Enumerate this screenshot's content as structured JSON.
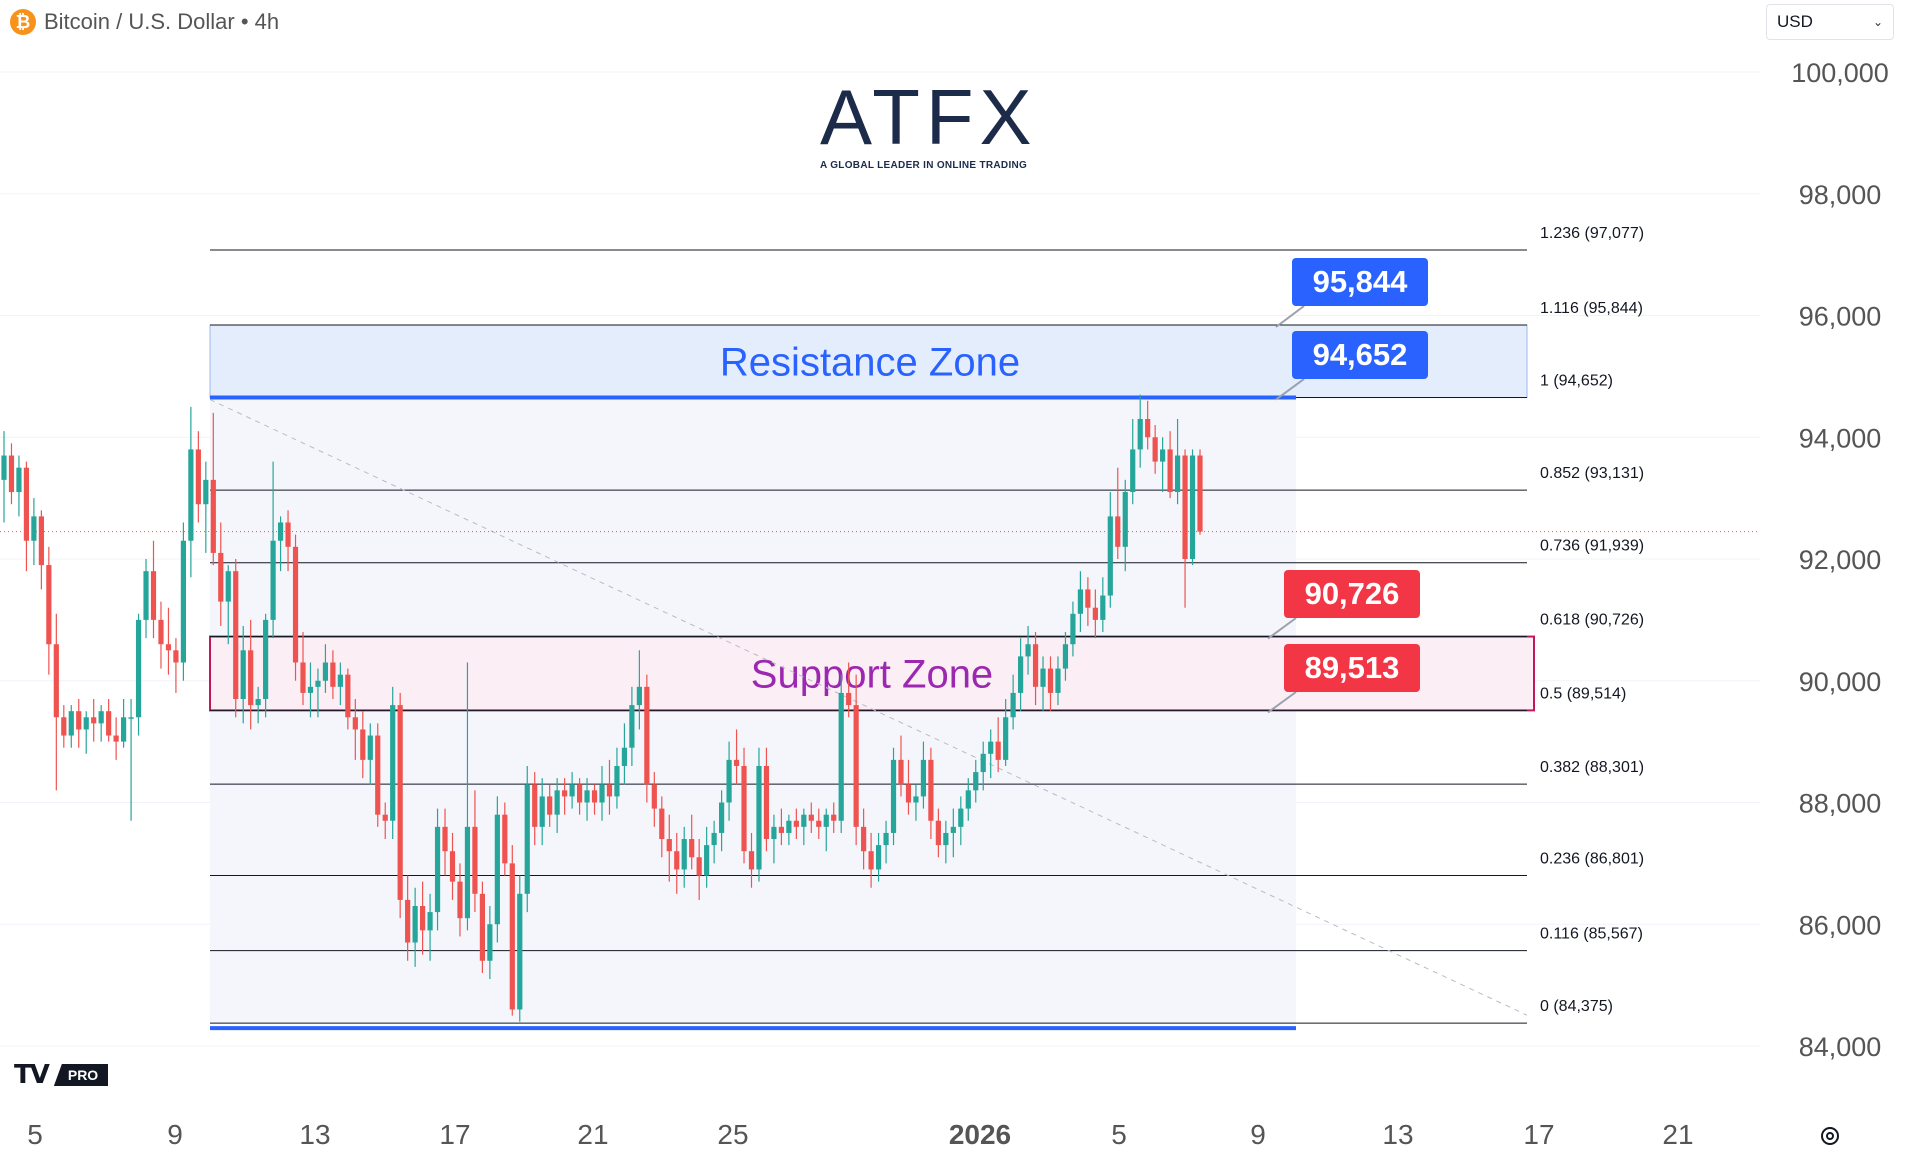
{
  "header": {
    "symbol_icon": "bitcoin-icon",
    "symbol_title": "Bitcoin / U.S. Dollar • 4h",
    "currency": "USD"
  },
  "branding": {
    "logo_text": "ATFX",
    "logo_tagline": "A GLOBAL LEADER IN ONLINE TRADING",
    "platform_logo": "tradingview-logo",
    "platform_badge": "PRO"
  },
  "colors": {
    "up": "#26a69a",
    "down": "#ef5350",
    "resistance": "#2962ff",
    "support": "#c2185b",
    "resistance_label": "#2962ff",
    "support_label": "#f23645"
  },
  "chart_data": {
    "type": "candlestick",
    "timeframe": "4h",
    "ylim": [
      83500,
      100500
    ],
    "y_ticks": [
      {
        "value": 84000,
        "label": "84,000"
      },
      {
        "value": 86000,
        "label": "86,000"
      },
      {
        "value": 88000,
        "label": "88,000"
      },
      {
        "value": 90000,
        "label": "90,000"
      },
      {
        "value": 92000,
        "label": "92,000"
      },
      {
        "value": 94000,
        "label": "94,000"
      },
      {
        "value": 96000,
        "label": "96,000"
      },
      {
        "value": 98000,
        "label": "98,000"
      },
      {
        "value": 100000,
        "label": "100,000"
      }
    ],
    "x_ticks": [
      "5",
      "9",
      "13",
      "17",
      "21",
      "25",
      "2026",
      "5",
      "9",
      "13",
      "17",
      "21"
    ],
    "fibonacci": {
      "levels": [
        {
          "ratio": "1.236",
          "price": 97077,
          "label": "1.236 (97,077)"
        },
        {
          "ratio": "1.116",
          "price": 95844,
          "label": "1.116 (95,844)"
        },
        {
          "ratio": "1",
          "price": 94652,
          "label": "1 (94,652)"
        },
        {
          "ratio": "0.852",
          "price": 93131,
          "label": "0.852 (93,131)"
        },
        {
          "ratio": "0.736",
          "price": 91939,
          "label": "0.736 (91,939)"
        },
        {
          "ratio": "0.618",
          "price": 90726,
          "label": "0.618 (90,726)"
        },
        {
          "ratio": "0.5",
          "price": 89514,
          "label": "0.5 (89,514)"
        },
        {
          "ratio": "0.382",
          "price": 88301,
          "label": "0.382 (88,301)"
        },
        {
          "ratio": "0.236",
          "price": 86801,
          "label": "0.236 (86,801)"
        },
        {
          "ratio": "0.116",
          "price": 85567,
          "label": "0.116 (85,567)"
        },
        {
          "ratio": "0",
          "price": 84375,
          "label": "0 (84,375)"
        }
      ]
    },
    "zones": [
      {
        "name": "Resistance Zone",
        "low": 94652,
        "high": 95844
      },
      {
        "name": "Support Zone",
        "low": 89513,
        "high": 90726
      }
    ],
    "price_labels": [
      {
        "value": 95844,
        "label": "95,844",
        "kind": "resistance"
      },
      {
        "value": 94652,
        "label": "94,652",
        "kind": "resistance"
      },
      {
        "value": 90726,
        "label": "90,726",
        "kind": "support"
      },
      {
        "value": 89513,
        "label": "89,513",
        "kind": "support"
      }
    ],
    "last_price": 92450,
    "candles": [
      [
        93300,
        94100,
        92600,
        93700
      ],
      [
        93700,
        93900,
        92900,
        93100
      ],
      [
        93100,
        93700,
        92700,
        93500
      ],
      [
        93500,
        93600,
        91800,
        92300
      ],
      [
        92300,
        93000,
        91900,
        92700
      ],
      [
        92700,
        92800,
        91500,
        91900
      ],
      [
        91900,
        92200,
        90100,
        90600
      ],
      [
        90600,
        91100,
        88200,
        89400
      ],
      [
        89400,
        89600,
        88900,
        89100
      ],
      [
        89100,
        89600,
        88900,
        89500
      ],
      [
        89500,
        89700,
        88900,
        89200
      ],
      [
        89200,
        89500,
        88800,
        89400
      ],
      [
        89400,
        89700,
        89000,
        89300
      ],
      [
        89300,
        89600,
        89000,
        89500
      ],
      [
        89500,
        89700,
        89000,
        89100
      ],
      [
        89100,
        89400,
        88700,
        89000
      ],
      [
        89000,
        89700,
        88900,
        89400
      ],
      [
        89400,
        89700,
        87700,
        89400
      ],
      [
        89400,
        91100,
        89100,
        91000
      ],
      [
        91000,
        92000,
        90700,
        91800
      ],
      [
        91800,
        92300,
        90700,
        91000
      ],
      [
        91000,
        91300,
        90200,
        90600
      ],
      [
        90600,
        91200,
        90100,
        90500
      ],
      [
        90500,
        90700,
        89800,
        90300
      ],
      [
        90300,
        92600,
        90000,
        92300
      ],
      [
        92300,
        94500,
        91700,
        93800
      ],
      [
        93800,
        94100,
        92600,
        92900
      ],
      [
        92900,
        93600,
        92100,
        93300
      ],
      [
        93300,
        94400,
        91900,
        92100
      ],
      [
        92100,
        92600,
        90900,
        91300
      ],
      [
        91300,
        91900,
        90600,
        91800
      ],
      [
        91800,
        92000,
        89400,
        89700
      ],
      [
        89700,
        90900,
        89300,
        90500
      ],
      [
        90500,
        91000,
        89200,
        89600
      ],
      [
        89600,
        89900,
        89300,
        89700
      ],
      [
        89700,
        91100,
        89400,
        91000
      ],
      [
        91000,
        93600,
        90700,
        92300
      ],
      [
        92300,
        92700,
        91800,
        92600
      ],
      [
        92600,
        92800,
        91800,
        92200
      ],
      [
        92200,
        92400,
        90000,
        90300
      ],
      [
        90300,
        90800,
        89600,
        89800
      ],
      [
        89800,
        90300,
        89400,
        89900
      ],
      [
        89900,
        90200,
        89400,
        90000
      ],
      [
        90000,
        90600,
        89800,
        90300
      ],
      [
        90300,
        90500,
        89700,
        89900
      ],
      [
        89900,
        90300,
        89600,
        90100
      ],
      [
        90100,
        90200,
        89200,
        89400
      ],
      [
        89400,
        89700,
        88700,
        89200
      ],
      [
        89200,
        89500,
        88400,
        88700
      ],
      [
        88700,
        89300,
        88300,
        89100
      ],
      [
        89100,
        89300,
        87600,
        87800
      ],
      [
        87800,
        88000,
        87400,
        87700
      ],
      [
        87700,
        89900,
        87400,
        89600
      ],
      [
        89600,
        89800,
        86100,
        86400
      ],
      [
        86400,
        86800,
        85400,
        85700
      ],
      [
        85700,
        86600,
        85300,
        86300
      ],
      [
        86300,
        86700,
        85500,
        85900
      ],
      [
        85900,
        86500,
        85400,
        86200
      ],
      [
        86200,
        87900,
        85900,
        87600
      ],
      [
        87600,
        87900,
        86800,
        87200
      ],
      [
        87200,
        87500,
        86400,
        86700
      ],
      [
        86700,
        87000,
        85800,
        86100
      ],
      [
        86100,
        90300,
        85900,
        87600
      ],
      [
        87600,
        88200,
        86200,
        86500
      ],
      [
        86500,
        86700,
        85200,
        85400
      ],
      [
        85400,
        86300,
        85100,
        86000
      ],
      [
        86000,
        88100,
        85700,
        87800
      ],
      [
        87800,
        88000,
        86800,
        87000
      ],
      [
        87000,
        87300,
        84500,
        84600
      ],
      [
        84600,
        86800,
        84400,
        86500
      ],
      [
        86500,
        88600,
        86200,
        88300
      ],
      [
        88300,
        88500,
        87300,
        87600
      ],
      [
        87600,
        88400,
        87300,
        88100
      ],
      [
        88100,
        88300,
        87600,
        87800
      ],
      [
        87800,
        88400,
        87500,
        88200
      ],
      [
        88200,
        88400,
        87800,
        88100
      ],
      [
        88100,
        88500,
        87900,
        88300
      ],
      [
        88300,
        88400,
        87800,
        88000
      ],
      [
        88000,
        88400,
        87700,
        88200
      ],
      [
        88200,
        88300,
        87800,
        88000
      ],
      [
        88000,
        88600,
        87700,
        88300
      ],
      [
        88300,
        88700,
        87800,
        88100
      ],
      [
        88100,
        88900,
        87900,
        88600
      ],
      [
        88600,
        89300,
        88300,
        88900
      ],
      [
        88900,
        89900,
        88600,
        89600
      ],
      [
        89600,
        90500,
        89200,
        89900
      ],
      [
        89900,
        90100,
        88000,
        88300
      ],
      [
        88300,
        88500,
        87600,
        87900
      ],
      [
        87900,
        88100,
        87100,
        87400
      ],
      [
        87400,
        87800,
        86700,
        87200
      ],
      [
        87200,
        87500,
        86500,
        86900
      ],
      [
        86900,
        87600,
        86600,
        87400
      ],
      [
        87400,
        87800,
        86900,
        87100
      ],
      [
        87100,
        87400,
        86400,
        86800
      ],
      [
        86800,
        87600,
        86600,
        87300
      ],
      [
        87300,
        87700,
        87000,
        87500
      ],
      [
        87500,
        88200,
        87200,
        88000
      ],
      [
        88000,
        89000,
        87700,
        88700
      ],
      [
        88700,
        89200,
        88300,
        88600
      ],
      [
        88600,
        88900,
        87000,
        87200
      ],
      [
        87200,
        87500,
        86600,
        86900
      ],
      [
        86900,
        88900,
        86700,
        88600
      ],
      [
        88600,
        88900,
        87200,
        87400
      ],
      [
        87400,
        87800,
        87000,
        87600
      ],
      [
        87600,
        87900,
        87300,
        87500
      ],
      [
        87500,
        87800,
        87300,
        87700
      ],
      [
        87700,
        87900,
        87400,
        87600
      ],
      [
        87600,
        87900,
        87300,
        87800
      ],
      [
        87800,
        88000,
        87500,
        87700
      ],
      [
        87700,
        87900,
        87400,
        87600
      ],
      [
        87600,
        87900,
        87200,
        87800
      ],
      [
        87800,
        88000,
        87500,
        87700
      ],
      [
        87700,
        90100,
        87500,
        89800
      ],
      [
        89800,
        90300,
        89400,
        89600
      ],
      [
        89600,
        90100,
        87300,
        87600
      ],
      [
        87600,
        87900,
        86900,
        87200
      ],
      [
        87200,
        87500,
        86600,
        86900
      ],
      [
        86900,
        87500,
        86700,
        87300
      ],
      [
        87300,
        87700,
        87000,
        87500
      ],
      [
        87500,
        88900,
        87300,
        88700
      ],
      [
        88700,
        89100,
        88100,
        88300
      ],
      [
        88300,
        88700,
        87800,
        88000
      ],
      [
        88000,
        88300,
        87700,
        88100
      ],
      [
        88100,
        89000,
        87900,
        88700
      ],
      [
        88700,
        88900,
        87400,
        87700
      ],
      [
        87700,
        87900,
        87100,
        87300
      ],
      [
        87300,
        87700,
        87000,
        87500
      ],
      [
        87500,
        87900,
        87100,
        87600
      ],
      [
        87600,
        88100,
        87300,
        87900
      ],
      [
        87900,
        88400,
        87700,
        88200
      ],
      [
        88200,
        88700,
        88000,
        88500
      ],
      [
        88500,
        89000,
        88200,
        88800
      ],
      [
        88800,
        89200,
        88400,
        89000
      ],
      [
        89000,
        89400,
        88500,
        88700
      ],
      [
        88700,
        89700,
        88600,
        89400
      ],
      [
        89400,
        90100,
        89200,
        89800
      ],
      [
        89800,
        90700,
        89500,
        90400
      ],
      [
        90400,
        90900,
        90100,
        90600
      ],
      [
        90600,
        90800,
        89600,
        89900
      ],
      [
        89900,
        90400,
        89500,
        90200
      ],
      [
        90200,
        90400,
        89500,
        89800
      ],
      [
        89800,
        90400,
        89600,
        90200
      ],
      [
        90200,
        90800,
        90000,
        90600
      ],
      [
        90600,
        91300,
        90400,
        91100
      ],
      [
        91100,
        91800,
        90800,
        91500
      ],
      [
        91500,
        91700,
        90900,
        91200
      ],
      [
        91200,
        91500,
        90700,
        91000
      ],
      [
        91000,
        91700,
        90800,
        91400
      ],
      [
        91400,
        93100,
        91200,
        92700
      ],
      [
        92700,
        93500,
        92000,
        92200
      ],
      [
        92200,
        93300,
        91800,
        93100
      ],
      [
        93100,
        94300,
        92900,
        93800
      ],
      [
        93800,
        94700,
        93500,
        94300
      ],
      [
        94300,
        94600,
        93800,
        94000
      ],
      [
        94000,
        94200,
        93400,
        93600
      ],
      [
        93600,
        94000,
        93100,
        93800
      ],
      [
        93800,
        94100,
        93000,
        93100
      ],
      [
        93100,
        94300,
        92900,
        93700
      ],
      [
        93700,
        93800,
        91200,
        92000
      ],
      [
        92000,
        93800,
        91900,
        93700
      ],
      [
        93700,
        93800,
        92400,
        92450
      ]
    ]
  }
}
